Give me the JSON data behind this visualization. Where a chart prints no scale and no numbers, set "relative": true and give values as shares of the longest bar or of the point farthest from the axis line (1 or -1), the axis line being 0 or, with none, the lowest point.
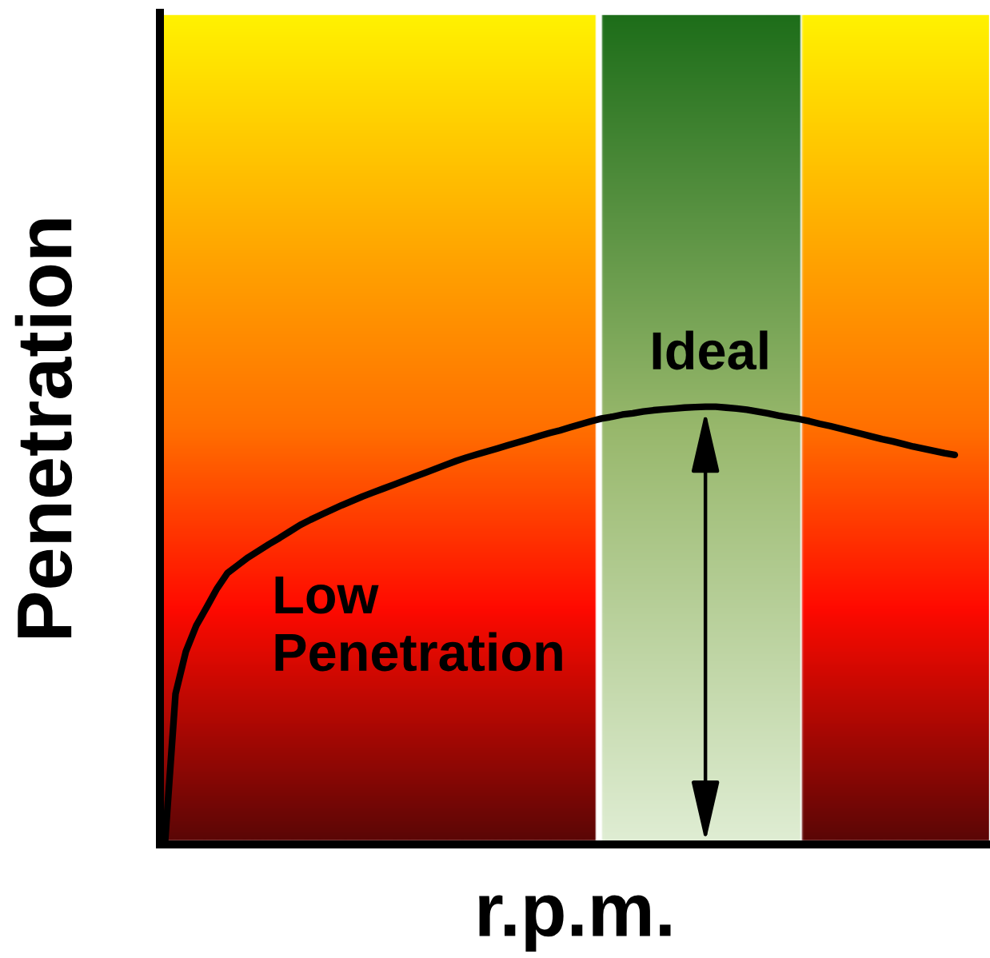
{
  "chart_data": {
    "type": "line",
    "xlabel": "r.p.m.",
    "ylabel": "Penetration",
    "relative": true,
    "line_style": "solid",
    "annotations": [
      "Ideal",
      "Low Penetration"
    ],
    "categories": [
      null,
      null,
      null,
      null,
      null,
      null,
      null,
      null,
      null,
      null,
      null,
      null,
      null,
      null,
      null,
      null,
      null,
      null,
      null,
      null,
      null,
      null,
      null,
      null,
      null,
      null,
      null,
      null,
      null,
      null,
      null,
      null,
      null,
      null,
      null,
      null,
      null,
      null,
      null,
      null,
      null,
      null,
      null,
      null,
      null,
      null,
      null,
      null,
      null,
      null,
      null,
      null,
      null,
      null,
      null,
      null,
      null,
      null,
      null,
      null,
      null,
      null,
      null,
      null,
      null,
      null,
      null,
      null,
      null,
      null,
      null,
      null,
      null,
      null,
      null,
      null,
      null
    ],
    "series": [
      {
        "color": "#000000",
        "values": [
          0.007,
          0.344,
          0.441,
          0.5,
          0.542,
          0.585,
          0.62,
          0.638,
          0.656,
          0.671,
          0.686,
          0.7,
          0.715,
          0.73,
          0.742,
          0.753,
          0.764,
          0.775,
          0.785,
          0.795,
          0.804,
          0.813,
          0.822,
          0.831,
          0.84,
          0.849,
          0.858,
          0.867,
          0.876,
          0.884,
          0.891,
          0.898,
          0.905,
          0.912,
          0.919,
          0.926,
          0.933,
          0.94,
          0.946,
          0.953,
          0.96,
          0.967,
          0.973,
          0.977,
          0.982,
          0.985,
          0.989,
          0.992,
          0.994,
          0.996,
          0.998,
          0.999,
          1.0,
          1.0,
          0.998,
          0.996,
          0.993,
          0.989,
          0.985,
          0.98,
          0.976,
          0.972,
          0.967,
          0.961,
          0.956,
          0.95,
          0.944,
          0.938,
          0.932,
          0.926,
          0.921,
          0.915,
          0.909,
          0.904,
          0.899,
          0.894,
          0.89
        ]
      }
    ]
  }
}
